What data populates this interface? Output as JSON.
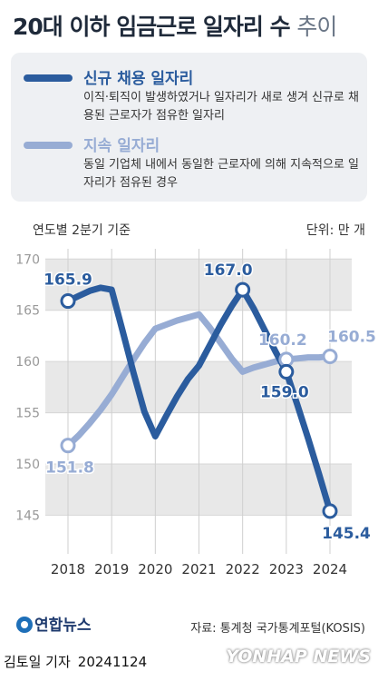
{
  "title": {
    "main": "20대 이하 임금근로 일자리 수",
    "light": "추이"
  },
  "legend": [
    {
      "name": "신규 채용 일자리",
      "color": "#2b5c9e",
      "description": "이직·퇴직이 발생하였거나 일자리가 새로 생겨 신규로 채용된 근로자가 점유한 일자리"
    },
    {
      "name": "지속 일자리",
      "color": "#97acd4",
      "description": "동일 기업체 내에서 동일한 근로자에 의해 지속적으로 일자리가 점유된 경우"
    }
  ],
  "basis_note": "연도별 2분기 기준",
  "unit_note": "단위: 만 개",
  "source": "자료: 통계청 국가통계포털(KOSIS)",
  "logo_text": "연합뉴스",
  "reporter": {
    "name": "김토일 기자",
    "date": "20241124"
  },
  "watermark": "YONHAP NEWS",
  "chart_data": {
    "type": "line",
    "x_ticks": [
      "2018",
      "2019",
      "2020",
      "2021",
      "2022",
      "2023",
      "2024"
    ],
    "y_ticks": [
      "145",
      "150",
      "155",
      "160",
      "165",
      "170"
    ],
    "ylim": [
      143,
      171
    ],
    "series": [
      {
        "name": "신규 채용 일자리",
        "color": "#2b5c9e",
        "values": [
          [
            2018,
            165.9
          ],
          [
            2018.25,
            166.4
          ],
          [
            2018.5,
            166.9
          ],
          [
            2018.75,
            167.2
          ],
          [
            2019,
            167.0
          ],
          [
            2019.25,
            163.0
          ],
          [
            2019.5,
            158.9
          ],
          [
            2019.75,
            155.1
          ],
          [
            2020,
            152.7
          ],
          [
            2020.25,
            154.7
          ],
          [
            2020.5,
            156.6
          ],
          [
            2020.75,
            158.3
          ],
          [
            2021,
            159.6
          ],
          [
            2021.25,
            161.6
          ],
          [
            2021.5,
            163.6
          ],
          [
            2021.75,
            165.4
          ],
          [
            2022,
            167.0
          ],
          [
            2022.25,
            165.2
          ],
          [
            2022.5,
            163.1
          ],
          [
            2022.75,
            161.0
          ],
          [
            2023,
            159.0
          ],
          [
            2023.25,
            155.8
          ],
          [
            2023.5,
            152.5
          ],
          [
            2023.75,
            149.0
          ],
          [
            2024,
            145.4
          ]
        ],
        "points": [
          [
            2018,
            165.9
          ],
          [
            2022,
            167.0
          ],
          [
            2023,
            159.0
          ],
          [
            2024,
            145.4
          ]
        ],
        "labels": [
          {
            "x": 2018,
            "y": 165.9,
            "text": "165.9"
          },
          {
            "x": 2022,
            "y": 167.0,
            "text": "167.0"
          },
          {
            "x": 2023,
            "y": 159.0,
            "text": "159.0"
          },
          {
            "x": 2024,
            "y": 145.4,
            "text": "145.4"
          }
        ]
      },
      {
        "name": "지속 일자리",
        "color": "#97acd4",
        "values": [
          [
            2018,
            151.8
          ],
          [
            2018.25,
            152.8
          ],
          [
            2018.5,
            154.0
          ],
          [
            2018.75,
            155.3
          ],
          [
            2019,
            156.8
          ],
          [
            2019.25,
            158.5
          ],
          [
            2019.5,
            160.2
          ],
          [
            2019.75,
            161.8
          ],
          [
            2020,
            163.2
          ],
          [
            2020.25,
            163.6
          ],
          [
            2020.5,
            164.0
          ],
          [
            2020.75,
            164.3
          ],
          [
            2021,
            164.6
          ],
          [
            2021.25,
            163.3
          ],
          [
            2021.5,
            161.8
          ],
          [
            2021.75,
            160.3
          ],
          [
            2022,
            159.0
          ],
          [
            2022.25,
            159.4
          ],
          [
            2022.5,
            159.7
          ],
          [
            2022.75,
            160.0
          ],
          [
            2023,
            160.2
          ],
          [
            2023.25,
            160.3
          ],
          [
            2023.5,
            160.4
          ],
          [
            2023.75,
            160.4
          ],
          [
            2024,
            160.5
          ]
        ],
        "points": [
          [
            2018,
            151.8
          ],
          [
            2023,
            160.2
          ],
          [
            2024,
            160.5
          ]
        ],
        "labels": [
          {
            "x": 2018,
            "y": 151.8,
            "text": "151.8"
          },
          {
            "x": 2023,
            "y": 160.2,
            "text": "160.2"
          },
          {
            "x": 2024,
            "y": 160.5,
            "text": "160.5"
          }
        ]
      }
    ],
    "band_fill": "#e8e8e8",
    "grid": true
  }
}
